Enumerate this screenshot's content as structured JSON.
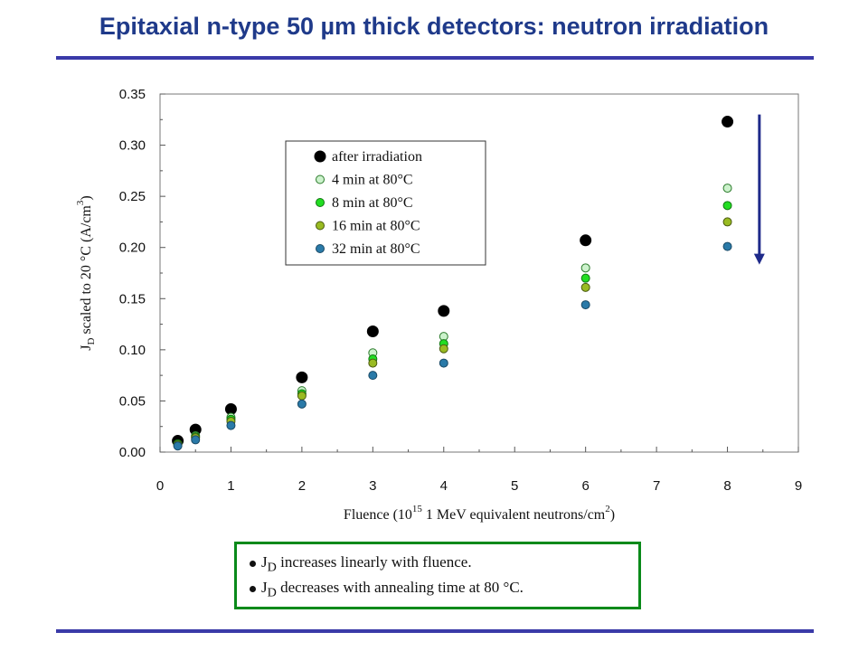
{
  "header": {
    "title": "Epitaxial n-type 50 µm thick detectors: neutron irradiation"
  },
  "chart_data": {
    "type": "scatter",
    "title": "",
    "xlabel": "Fluence (10",
    "xlabel_sup1": "15",
    "xlabel_mid": " 1 MeV equivalent neutrons/cm",
    "xlabel_sup2": "2",
    "xlabel_end": ")",
    "ylabel_pre": "J",
    "ylabel_sub": "D",
    "ylabel_mid": " scaled to 20 °C (A/cm",
    "ylabel_sup": "3",
    "ylabel_end": ")",
    "xlim": [
      0,
      9
    ],
    "ylim": [
      0,
      0.35
    ],
    "xticks": [
      "0",
      "1",
      "2",
      "3",
      "4",
      "5",
      "6",
      "7",
      "8",
      "9"
    ],
    "yticks": [
      "0.00",
      "0.05",
      "0.10",
      "0.15",
      "0.20",
      "0.25",
      "0.30",
      "0.35"
    ],
    "legend_position": "upper-center",
    "series": [
      {
        "name": "after irradiation",
        "color": "#000000",
        "stroke": "#000000",
        "size": "large",
        "x": [
          0.25,
          0.5,
          1.0,
          2.0,
          3.0,
          4.0,
          6.0,
          8.0
        ],
        "y": [
          0.011,
          0.022,
          0.042,
          0.073,
          0.118,
          0.138,
          0.207,
          0.323
        ]
      },
      {
        "name": "4 min at 80°C",
        "color": "#ccf2cc",
        "stroke": "#2a7a2a",
        "size": "small",
        "x": [
          0.25,
          0.5,
          1.0,
          2.0,
          3.0,
          4.0,
          6.0,
          8.0
        ],
        "y": [
          0.008,
          0.016,
          0.034,
          0.06,
          0.097,
          0.113,
          0.18,
          0.258
        ]
      },
      {
        "name": "8 min at 80°C",
        "color": "#22dd22",
        "stroke": "#117711",
        "size": "small",
        "x": [
          0.25,
          0.5,
          1.0,
          2.0,
          3.0,
          4.0,
          6.0,
          8.0
        ],
        "y": [
          0.008,
          0.015,
          0.032,
          0.057,
          0.091,
          0.106,
          0.17,
          0.241
        ]
      },
      {
        "name": "16 min at 80°C",
        "color": "#99bb22",
        "stroke": "#4a5a10",
        "size": "small",
        "x": [
          0.25,
          0.5,
          1.0,
          2.0,
          3.0,
          4.0,
          6.0,
          8.0
        ],
        "y": [
          0.007,
          0.014,
          0.03,
          0.055,
          0.087,
          0.101,
          0.161,
          0.225
        ]
      },
      {
        "name": "32 min at 80°C",
        "color": "#2a7aa8",
        "stroke": "#1a4a66",
        "size": "small",
        "x": [
          0.25,
          0.5,
          1.0,
          2.0,
          3.0,
          4.0,
          6.0,
          8.0
        ],
        "y": [
          0.006,
          0.012,
          0.026,
          0.047,
          0.075,
          0.087,
          0.144,
          0.201
        ]
      }
    ],
    "annotation_arrow": {
      "x": 8.45,
      "y_from": 0.33,
      "y_to": 0.185,
      "color": "#1f2a8a"
    }
  },
  "notes": {
    "border_color": "#0a8a1a",
    "items": [
      {
        "pre": "J",
        "sub": "D",
        "text": " increases linearly with fluence."
      },
      {
        "pre": "J",
        "sub": "D",
        "text": " decreases with annealing time at 80 °C."
      }
    ]
  }
}
